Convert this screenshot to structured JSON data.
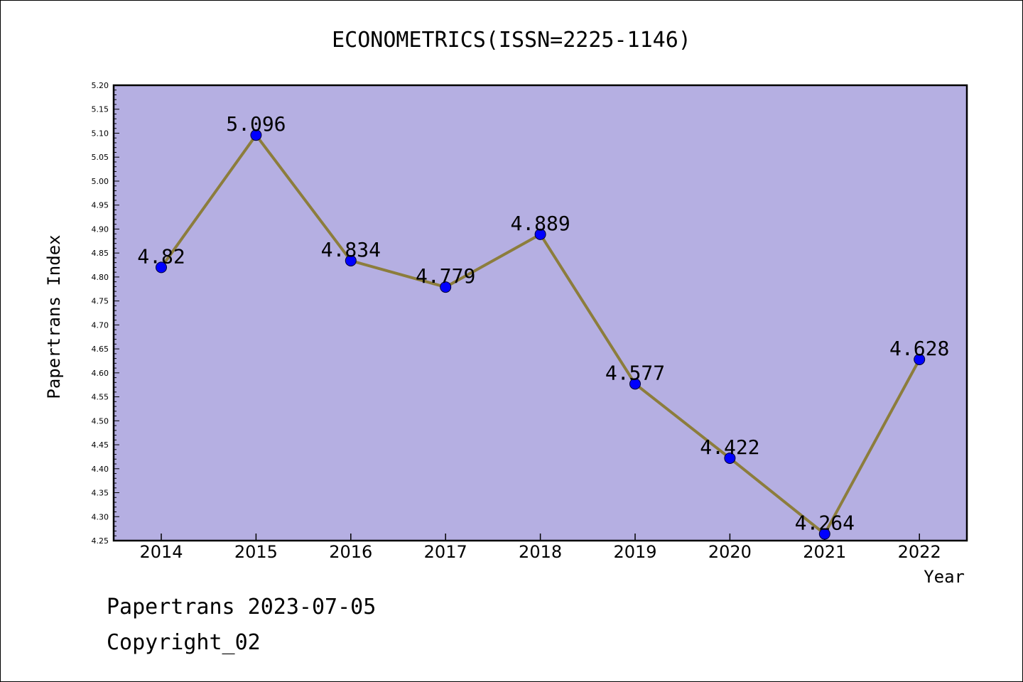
{
  "chart_data": {
    "type": "line",
    "title": "ECONOMETRICS(ISSN=2225-1146)",
    "xlabel": "Year",
    "ylabel": "Papertrans Index",
    "categories": [
      "2014",
      "2015",
      "2016",
      "2017",
      "2018",
      "2019",
      "2020",
      "2021",
      "2022"
    ],
    "series": [
      {
        "values": [
          4.82,
          5.096,
          4.834,
          4.779,
          4.889,
          4.577,
          4.422,
          4.264,
          4.628
        ],
        "labels": [
          "4.82",
          "5.096",
          "4.834",
          "4.779",
          "4.889",
          "4.577",
          "4.422",
          "4.264",
          "4.628"
        ]
      }
    ],
    "ylim": [
      4.25,
      5.2
    ],
    "yticks": [
      "4.25",
      "4.30",
      "4.35",
      "4.40",
      "4.45",
      "4.50",
      "4.55",
      "4.60",
      "4.65",
      "4.70",
      "4.75",
      "4.80",
      "4.85",
      "4.90",
      "4.95",
      "5.00",
      "5.05",
      "5.10",
      "5.15",
      "5.20"
    ],
    "grid": false,
    "legend": "none"
  },
  "colors": {
    "plot_background": "#b5afe2",
    "line": "#8c7d3c",
    "marker": "#0000ff"
  },
  "footer": {
    "date_line": "Papertrans 2023-07-05",
    "copyright": "Copyright_02"
  }
}
